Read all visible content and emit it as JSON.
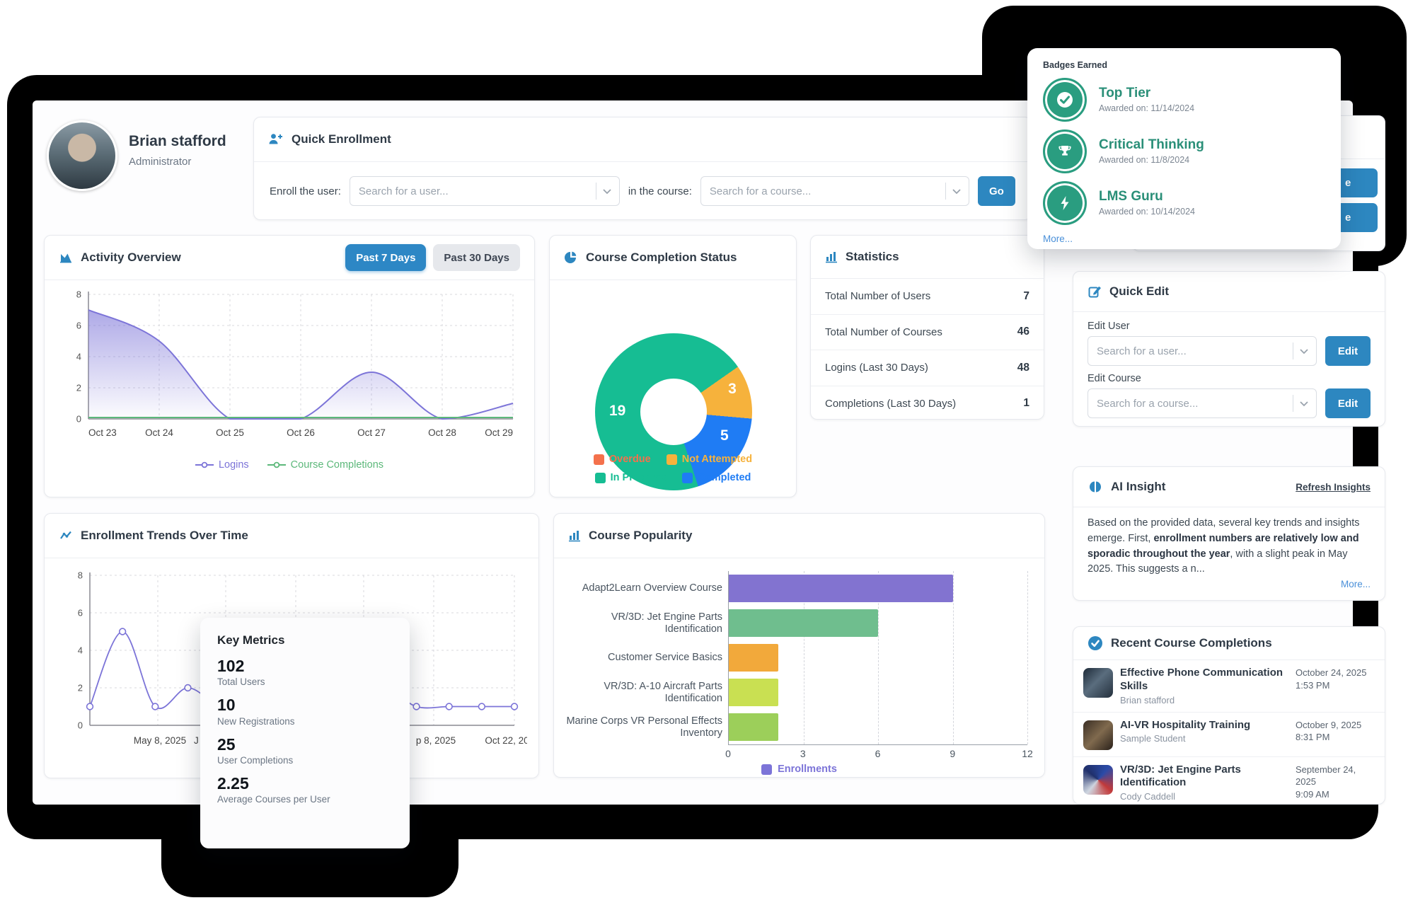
{
  "page": {
    "accent_blue": "#2d87c0",
    "frame_color": "#000000"
  },
  "profile": {
    "name": "Brian stafford",
    "role": "Administrator"
  },
  "quick_enrollment": {
    "title": "Quick Enrollment",
    "enroll_label": "Enroll the user:",
    "user_placeholder": "Search for a user...",
    "course_label": "in the course:",
    "course_placeholder": "Search for a course...",
    "go_label": "Go"
  },
  "top_right_panel": {
    "button_a_visible": "e",
    "button_b_visible": "e"
  },
  "badges_popup": {
    "title": "Badges Earned",
    "more_label": "More...",
    "items": [
      {
        "name": "Top Tier",
        "awarded": "Awarded on: 11/14/2024",
        "icon": "check-icon"
      },
      {
        "name": "Critical Thinking",
        "awarded": "Awarded on: 11/8/2024",
        "icon": "trophy-icon"
      },
      {
        "name": "LMS Guru",
        "awarded": "Awarded on: 10/14/2024",
        "icon": "bolt-icon"
      }
    ]
  },
  "activity": {
    "title": "Activity Overview",
    "range_active": "Past 7 Days",
    "range_inactive": "Past 30 Days"
  },
  "completion_status": {
    "title": "Course Completion Status"
  },
  "statistics": {
    "title": "Statistics",
    "rows": [
      {
        "label": "Total Number of Users",
        "value": "7"
      },
      {
        "label": "Total Number of Courses",
        "value": "46"
      },
      {
        "label": "Logins (Last 30 Days)",
        "value": "48"
      },
      {
        "label": "Completions (Last 30 Days)",
        "value": "1"
      }
    ]
  },
  "quick_edit": {
    "title": "Quick Edit",
    "edit_user_label": "Edit User",
    "user_placeholder": "Search for a user...",
    "edit_course_label": "Edit Course",
    "course_placeholder": "Search for a course...",
    "edit_label": "Edit"
  },
  "ai_insight": {
    "title": "AI Insight",
    "refresh_label": "Refresh Insights",
    "text_before": "Based on the provided data, several key trends and insights emerge. First, ",
    "text_bold": "enrollment numbers are relatively low and sporadic throughout the year",
    "text_after": ", with a slight peak in May 2025. This suggests a n...",
    "more_label": "More..."
  },
  "recent_completions": {
    "title": "Recent Course Completions",
    "items": [
      {
        "course": "Effective Phone Communication Skills",
        "user": "Brian stafford",
        "date": "October 24, 2025",
        "time": "1:53 PM"
      },
      {
        "course": "AI-VR Hospitality Training",
        "user": "Sample Student",
        "date": "October 9, 2025",
        "time": "8:31 PM"
      },
      {
        "course": "VR/3D: Jet Engine Parts Identification",
        "user": "Cody Caddell",
        "date": "September 24, 2025",
        "time": "9:09 AM"
      }
    ]
  },
  "enrollment_trends": {
    "title": "Enrollment Trends Over Time"
  },
  "course_popularity": {
    "title": "Course Popularity",
    "legend_label": "Enrollments"
  },
  "key_metrics": {
    "title": "Key Metrics",
    "metrics": [
      {
        "value": "102",
        "label": "Total Users"
      },
      {
        "value": "10",
        "label": "New Registrations"
      },
      {
        "value": "25",
        "label": "User Completions"
      },
      {
        "value": "2.25",
        "label": "Average Courses per User"
      }
    ]
  },
  "chart_data": [
    {
      "id": "activity_overview",
      "type": "area",
      "title": "Activity Overview",
      "x_labels": [
        "Oct 23",
        "Oct 24",
        "Oct 25",
        "Oct 26",
        "Oct 27",
        "Oct 28",
        "Oct 29"
      ],
      "y_ticks": [
        0,
        2,
        4,
        6,
        8
      ],
      "ylim": [
        0,
        8
      ],
      "grid": true,
      "legend_position": "bottom",
      "series": [
        {
          "name": "Logins",
          "color": "#7c74d8",
          "values": [
            7,
            5,
            0,
            0,
            3,
            0,
            1
          ]
        },
        {
          "name": "Course Completions",
          "color": "#5cb87a",
          "values": [
            0,
            0,
            0,
            0,
            0,
            0,
            0
          ]
        }
      ]
    },
    {
      "id": "course_completion_status",
      "type": "donut",
      "title": "Course Completion Status",
      "labels": [
        "Overdue",
        "Not Attempted",
        "In Progress",
        "Completed"
      ],
      "values": [
        0,
        3,
        19,
        5
      ],
      "colors": [
        "#f4714c",
        "#f6b23c",
        "#16bd93",
        "#1f7cf4"
      ],
      "start_angle_deg": 55,
      "draw_order": [
        1,
        3,
        2
      ],
      "legend_position": "bottom"
    },
    {
      "id": "enrollment_trends",
      "type": "line",
      "title": "Enrollment Trends Over Time",
      "y_ticks": [
        0,
        2,
        4,
        6,
        8
      ],
      "ylim": [
        0,
        8
      ],
      "grid": true,
      "series": [
        {
          "name": "Enrollments",
          "color": "#7c74d8",
          "values": [
            1,
            5,
            1,
            2,
            1,
            1,
            1,
            1,
            1,
            2,
            1,
            1,
            1,
            1
          ]
        }
      ],
      "x_tick_labels": [
        {
          "text": "May 8, 2025",
          "f": 0.165,
          "anchor": "middle"
        },
        {
          "text": "J",
          "f": 0.245,
          "anchor": "start"
        },
        {
          "text": "p 8, 2025",
          "f": 0.815,
          "anchor": "middle"
        },
        {
          "text": "Oct 22, 2025",
          "f": 0.995,
          "anchor": "middle"
        }
      ],
      "x_gridlines": [
        0.16,
        0.32,
        0.485,
        0.645,
        0.81,
        1.0
      ]
    },
    {
      "id": "course_popularity",
      "type": "bar",
      "title": "Course Popularity",
      "categories": [
        "Adapt2Learn Overview Course",
        "VR/3D: Jet Engine Parts Identification",
        "Customer Service Basics",
        "VR/3D: A-10 Aircraft Parts Identification",
        "Marine Corps VR Personal Effects Inventory"
      ],
      "values": [
        9,
        6,
        2,
        2,
        2
      ],
      "colors": [
        "#8273d0",
        "#6fbe8e",
        "#f2a93b",
        "#c9e052",
        "#9ccf5a"
      ],
      "x_ticks": [
        0,
        3,
        6,
        9,
        12
      ],
      "xlim": [
        0,
        12
      ],
      "legend": [
        "Enrollments"
      ],
      "legend_color": "#7c74d8"
    }
  ]
}
